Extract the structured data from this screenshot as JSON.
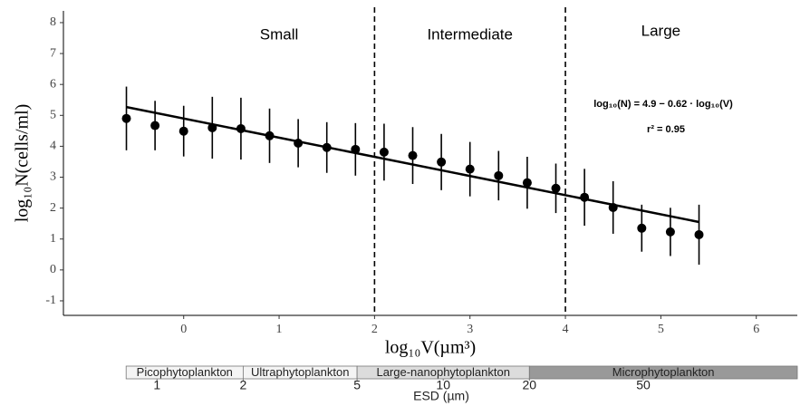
{
  "chart_data": {
    "type": "scatter",
    "x_label": "log₁₀V(µm³)",
    "y_label": "log₁₀N(cells/ml)",
    "x": [
      -0.6,
      -0.3,
      0,
      0.3,
      0.6,
      0.9,
      1.2,
      1.5,
      1.8,
      2.1,
      2.4,
      2.7,
      3.0,
      3.3,
      3.6,
      3.9,
      4.2,
      4.5,
      4.8,
      5.1,
      5.4
    ],
    "values": [
      4.9,
      4.67,
      4.49,
      4.6,
      4.57,
      4.34,
      4.1,
      3.96,
      3.9,
      3.81,
      3.7,
      3.49,
      3.26,
      3.05,
      2.82,
      2.64,
      2.35,
      2.02,
      1.35,
      1.23,
      1.14
    ],
    "errors": [
      1.03,
      0.8,
      0.82,
      1.0,
      1.0,
      0.88,
      0.78,
      0.82,
      0.85,
      0.92,
      0.92,
      0.91,
      0.88,
      0.8,
      0.84,
      0.8,
      0.92,
      0.85,
      0.76,
      0.78,
      0.97
    ],
    "color": "#000000",
    "fit": {
      "x": [
        -0.6,
        5.4
      ],
      "values": [
        5.27,
        1.55
      ]
    },
    "vlines": [
      2,
      4
    ],
    "regions": [
      "Small",
      "Intermediate",
      "Large"
    ],
    "equation": "log₁₀(N) = 4.9 − 0.62 · log₁₀(V)",
    "r2": "r² = 0.95",
    "xlim": [
      -1.26,
      6.43
    ],
    "ylim": [
      -1.47,
      8.38
    ],
    "xticks": [
      0,
      1,
      2,
      3,
      4,
      5,
      6
    ],
    "yticks": [
      -1,
      0,
      1,
      2,
      3,
      4,
      5,
      6,
      7,
      8
    ],
    "grid": false,
    "esd_axis": {
      "title": "ESD (µm)",
      "log": true,
      "xlim": [
        0.471,
        172.6
      ],
      "ticks": [
        1,
        2,
        5,
        10,
        20,
        50
      ],
      "classes": [
        {
          "name": "Picophytoplankton",
          "range": [
            0.78,
            2
          ],
          "color": "#f4f4f4"
        },
        {
          "name": "Ultraphytoplankton",
          "range": [
            2,
            5
          ],
          "color": "#f4f4f4"
        },
        {
          "name": "Large-nanophytoplankton",
          "range": [
            5,
            20
          ],
          "color": "#dcdcdc"
        },
        {
          "name": "Microphytoplankton",
          "range": [
            20,
            172.6
          ],
          "color": "#999999"
        }
      ]
    }
  }
}
